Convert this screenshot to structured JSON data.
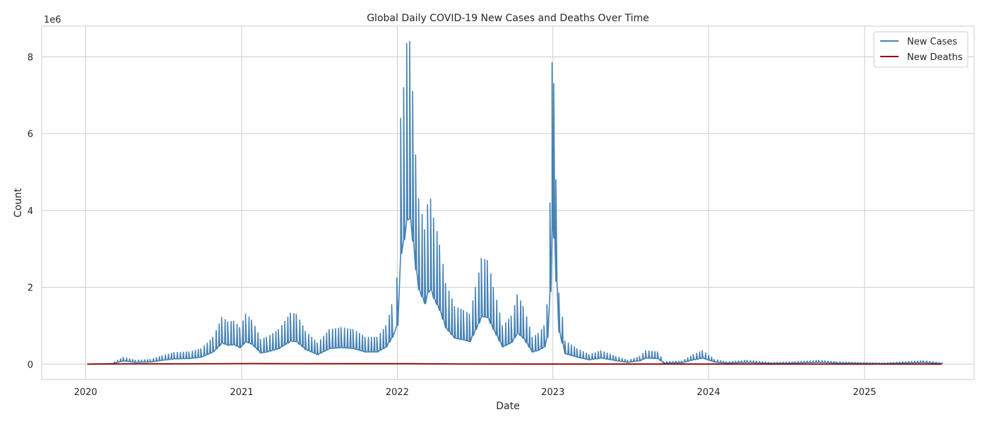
{
  "chart_data": {
    "type": "line",
    "title": "Global Daily COVID-19 New Cases and Deaths Over Time",
    "xlabel": "Date",
    "ylabel": "Count",
    "y_offset_label": "1e6",
    "y_scale_factor": 1000000,
    "xlim": [
      "2019-09-20",
      "2025-09-15"
    ],
    "ylim": [
      -400000,
      8800000
    ],
    "x_ticks": [
      "2020",
      "2021",
      "2022",
      "2023",
      "2024",
      "2025"
    ],
    "y_ticks": [
      0,
      2,
      4,
      6,
      8
    ],
    "grid": true,
    "legend_position": "top-right",
    "series": [
      {
        "name": "New Cases",
        "color": "#4682b4",
        "points": [
          [
            "2020-01-05",
            0
          ],
          [
            "2020-03-01",
            20000
          ],
          [
            "2020-03-29",
            180000
          ],
          [
            "2020-04-26",
            100000
          ],
          [
            "2020-05-31",
            120000
          ],
          [
            "2020-06-28",
            220000
          ],
          [
            "2020-07-26",
            300000
          ],
          [
            "2020-08-30",
            320000
          ],
          [
            "2020-09-27",
            400000
          ],
          [
            "2020-10-25",
            700000
          ],
          [
            "2020-11-15",
            1220000
          ],
          [
            "2020-11-29",
            1100000
          ],
          [
            "2020-12-13",
            1120000
          ],
          [
            "2020-12-27",
            950000
          ],
          [
            "2021-01-10",
            1300000
          ],
          [
            "2021-01-24",
            1150000
          ],
          [
            "2021-02-14",
            650000
          ],
          [
            "2021-02-28",
            700000
          ],
          [
            "2021-03-28",
            900000
          ],
          [
            "2021-04-25",
            1330000
          ],
          [
            "2021-05-09",
            1300000
          ],
          [
            "2021-05-30",
            850000
          ],
          [
            "2021-06-27",
            550000
          ],
          [
            "2021-07-25",
            900000
          ],
          [
            "2021-08-22",
            950000
          ],
          [
            "2021-09-19",
            900000
          ],
          [
            "2021-10-17",
            700000
          ],
          [
            "2021-11-14",
            700000
          ],
          [
            "2021-12-05",
            1000000
          ],
          [
            "2021-12-19",
            1550000
          ],
          [
            "2021-12-31",
            2250000
          ],
          [
            "2022-01-09",
            6400000
          ],
          [
            "2022-01-16",
            7200000
          ],
          [
            "2022-01-23",
            8350000
          ],
          [
            "2022-01-30",
            8400000
          ],
          [
            "2022-02-06",
            7100000
          ],
          [
            "2022-02-13",
            5450000
          ],
          [
            "2022-02-20",
            4300000
          ],
          [
            "2022-03-06",
            3500000
          ],
          [
            "2022-03-13",
            4150000
          ],
          [
            "2022-03-20",
            4300000
          ],
          [
            "2022-03-27",
            3800000
          ],
          [
            "2022-04-10",
            3100000
          ],
          [
            "2022-04-24",
            2100000
          ],
          [
            "2022-05-15",
            1500000
          ],
          [
            "2022-06-05",
            1400000
          ],
          [
            "2022-06-19",
            1300000
          ],
          [
            "2022-07-03",
            2000000
          ],
          [
            "2022-07-17",
            2750000
          ],
          [
            "2022-07-31",
            2700000
          ],
          [
            "2022-08-14",
            2000000
          ],
          [
            "2022-09-04",
            1000000
          ],
          [
            "2022-09-25",
            1250000
          ],
          [
            "2022-10-09",
            1800000
          ],
          [
            "2022-10-23",
            1500000
          ],
          [
            "2022-11-13",
            700000
          ],
          [
            "2022-11-27",
            800000
          ],
          [
            "2022-12-11",
            1000000
          ],
          [
            "2022-12-18",
            1550000
          ],
          [
            "2022-12-25",
            4200000
          ],
          [
            "2022-12-30",
            7850000
          ],
          [
            "2023-01-03",
            7300000
          ],
          [
            "2023-01-08",
            4800000
          ],
          [
            "2023-01-15",
            1850000
          ],
          [
            "2023-01-29",
            600000
          ],
          [
            "2023-02-26",
            400000
          ],
          [
            "2023-03-26",
            250000
          ],
          [
            "2023-04-23",
            350000
          ],
          [
            "2023-05-28",
            200000
          ],
          [
            "2023-06-25",
            100000
          ],
          [
            "2023-07-23",
            200000
          ],
          [
            "2023-08-06",
            350000
          ],
          [
            "2023-09-03",
            320000
          ],
          [
            "2023-09-17",
            60000
          ],
          [
            "2023-10-29",
            80000
          ],
          [
            "2023-11-26",
            250000
          ],
          [
            "2023-12-17",
            350000
          ],
          [
            "2024-01-14",
            120000
          ],
          [
            "2024-02-11",
            60000
          ],
          [
            "2024-03-31",
            100000
          ],
          [
            "2024-05-26",
            40000
          ],
          [
            "2024-07-21",
            60000
          ],
          [
            "2024-09-15",
            100000
          ],
          [
            "2024-10-27",
            60000
          ],
          [
            "2024-12-22",
            40000
          ],
          [
            "2025-02-16",
            30000
          ],
          [
            "2025-05-18",
            90000
          ],
          [
            "2025-07-01",
            30000
          ]
        ]
      },
      {
        "name": "New Deaths",
        "color": "#8b0000",
        "points": [
          [
            "2020-01-05",
            0
          ],
          [
            "2020-04-19",
            7000
          ],
          [
            "2020-07-26",
            6000
          ],
          [
            "2021-01-24",
            14000
          ],
          [
            "2021-04-25",
            13000
          ],
          [
            "2021-08-22",
            11000
          ],
          [
            "2022-01-30",
            11000
          ],
          [
            "2022-06-05",
            3000
          ],
          [
            "2022-12-30",
            2000
          ],
          [
            "2023-02-12",
            2000
          ],
          [
            "2023-06-04",
            1000
          ],
          [
            "2024-01-14",
            600
          ],
          [
            "2025-07-01",
            200
          ]
        ]
      }
    ]
  }
}
